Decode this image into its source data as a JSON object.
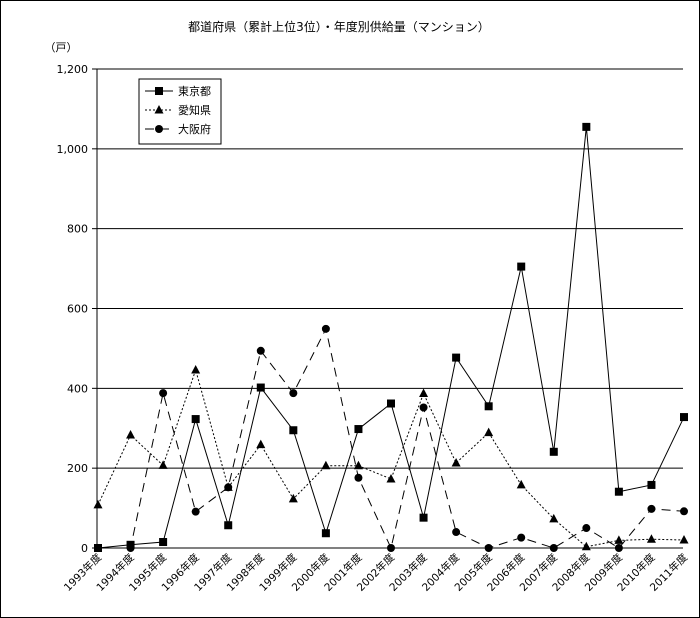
{
  "chart_data": {
    "type": "line",
    "title": "都道府県（累計上位3位）・年度別供給量（マンション）",
    "ylabel": "（戸）",
    "xlabel": "",
    "ylim": [
      0,
      1200
    ],
    "yticks": [
      0,
      200,
      400,
      600,
      800,
      1000,
      1200
    ],
    "ytick_labels": [
      "0",
      "200",
      "400",
      "600",
      "800",
      "1,000",
      "1,200"
    ],
    "grid": true,
    "legend_position": "top-left",
    "categories": [
      "1993年度",
      "1994年度",
      "1995年度",
      "1996年度",
      "1997年度",
      "1998年度",
      "1999年度",
      "2000年度",
      "2001年度",
      "2002年度",
      "2003年度",
      "2004年度",
      "2005年度",
      "2006年度",
      "2007年度",
      "2008年度",
      "2009年度",
      "2010年度",
      "2011年度"
    ],
    "series": [
      {
        "name": "東京都",
        "marker": "square",
        "style": "solid",
        "values": [
          0,
          8,
          15,
          323,
          57,
          402,
          295,
          37,
          298,
          362,
          76,
          477,
          355,
          705,
          241,
          1055,
          141,
          158,
          328
        ]
      },
      {
        "name": "愛知県",
        "marker": "triangle",
        "style": "dotted",
        "values": [
          108,
          283,
          207,
          446,
          152,
          259,
          123,
          206,
          206,
          173,
          387,
          213,
          289,
          158,
          73,
          3,
          19,
          22,
          20
        ]
      },
      {
        "name": "大阪府",
        "marker": "circle",
        "style": "dashed",
        "values": [
          0,
          0,
          388,
          91,
          152,
          494,
          388,
          549,
          176,
          0,
          352,
          40,
          0,
          26,
          0,
          50,
          0,
          98,
          92
        ]
      }
    ]
  }
}
